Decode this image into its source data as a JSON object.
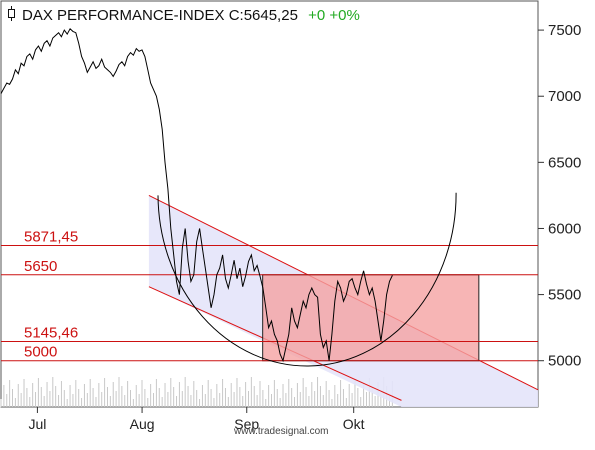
{
  "header": {
    "symbol_icon": "candlestick-icon",
    "title": "DAX PERFORMANCE-INDEX C:5645,25",
    "change": "+0 +0%",
    "change_color": "#22aa22"
  },
  "watermark": "www.tradesignal.com",
  "colors": {
    "price": "#000000",
    "level_line": "#cc1111",
    "channel_line": "#dd1111",
    "channel_fill": "#e4e4fa",
    "box_fill": "#f5a3a3",
    "volume": "#c8c8c8"
  },
  "chart_data": {
    "type": "line",
    "title": "DAX PERFORMANCE-INDEX",
    "last_close": "5645,25",
    "y_ticks": [
      5000,
      5500,
      6000,
      6500,
      7000,
      7500
    ],
    "y_tick_labels": [
      "5000",
      "5500",
      "6000",
      "6500",
      "7000",
      "7500"
    ],
    "ylim": [
      4650,
      7720
    ],
    "x_tick_labels": [
      "Jul",
      "Aug",
      "Sep",
      "Okt"
    ],
    "x_tick_days": [
      16,
      62,
      108,
      155
    ],
    "xlim": [
      0,
      236
    ],
    "grid": false,
    "levels": [
      {
        "value": 5871.45,
        "label": "5871,45"
      },
      {
        "value": 5650,
        "label": "5650"
      },
      {
        "value": 5145.46,
        "label": "5145,46"
      },
      {
        "value": 5000,
        "label": "5000"
      }
    ],
    "series": [
      {
        "values": [
          7020,
          7060,
          7100,
          7090,
          7130,
          7200,
          7170,
          7250,
          7230,
          7300,
          7320,
          7280,
          7350,
          7380,
          7340,
          7400,
          7420,
          7380,
          7440,
          7460,
          7480,
          7450,
          7500,
          7470,
          7510,
          7490,
          7480,
          7400,
          7300,
          7250,
          7180,
          7220,
          7260,
          7210,
          7230,
          7280,
          7220,
          7200,
          7180,
          7150,
          7190,
          7240,
          7260,
          7230,
          7300,
          7330,
          7310,
          7360,
          7340,
          7350,
          7300,
          7200,
          7100,
          7050,
          7000,
          6900,
          6750,
          6500,
          6300,
          6000,
          5800,
          5600,
          5500,
          5850,
          6000,
          5750,
          5600,
          5650,
          5900,
          6000,
          5850,
          5700,
          5550,
          5400,
          5500,
          5650,
          5700,
          5800,
          5620,
          5550,
          5650,
          5760,
          5620,
          5700,
          5560,
          5640,
          5750,
          5800,
          5680,
          5720,
          5640,
          5550,
          5400,
          5250,
          5300,
          5200,
          5150,
          5050,
          5000,
          5100,
          5200,
          5400,
          5300,
          5250,
          5350,
          5450,
          5400,
          5500,
          5550,
          5500,
          5480,
          5200,
          5100,
          5150,
          5000,
          5200,
          5450,
          5600,
          5550,
          5450,
          5500,
          5600,
          5620,
          5550,
          5500,
          5600,
          5680,
          5580,
          5500,
          5550,
          5450,
          5300,
          5150,
          5300,
          5500,
          5600,
          5645.25
        ]
      }
    ],
    "channel": {
      "upper_start": {
        "day": 65,
        "value": 6250
      },
      "upper_end": {
        "day": 236,
        "value": 4780
      },
      "lower_start": {
        "day": 65,
        "value": 5560
      },
      "lower_end": {
        "day": 176,
        "value": 4700
      }
    },
    "box": {
      "start_day": 115,
      "end_day": 210,
      "top": 5650,
      "bottom": 5000
    },
    "arc": {
      "start_day": 69,
      "start_value": 6250,
      "end_day": 200,
      "end_value": 6270,
      "low_value": 4960
    }
  }
}
